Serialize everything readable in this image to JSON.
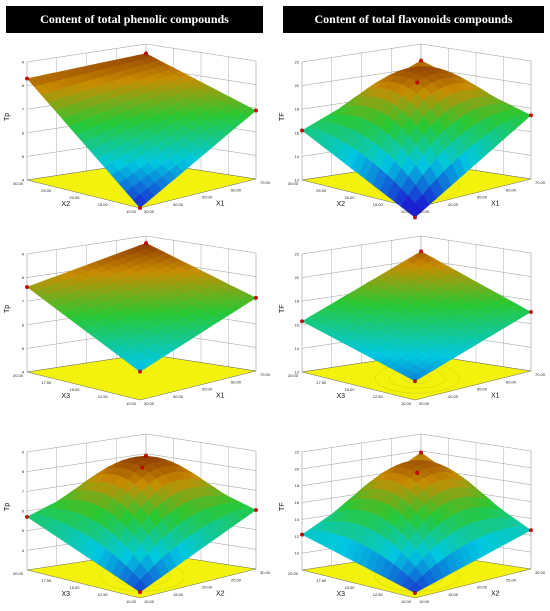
{
  "headers": {
    "left": "Content of total phenolic compounds",
    "right": "Content of total flavonoids compounds"
  },
  "colors": {
    "floor": "#f2f20c",
    "surface_high": "#7a1e00",
    "surface_mid": "#1fbf3a",
    "surface_low": "#1a1fd0",
    "marker": "#e00000"
  },
  "chart_data": [
    {
      "type": "surface3d",
      "column": "left",
      "row": 1,
      "xlabel": "X1",
      "ylabel": "X2",
      "zlabel": "Tp",
      "x_ticks": [
        "30.00",
        "40.00",
        "50.00",
        "60.00",
        "70.00"
      ],
      "y_ticks": [
        "10.00",
        "15.00",
        "20.00",
        "25.00",
        "30.00"
      ],
      "z_ticks": [
        "4",
        "5",
        "6",
        "7",
        "8",
        "9"
      ],
      "zlim": [
        4,
        9
      ],
      "corners": {
        "left": 8.3,
        "back": 8.6,
        "right": 6.9,
        "front": 4.0
      },
      "peak": null,
      "contours": false
    },
    {
      "type": "surface3d",
      "column": "right",
      "row": 1,
      "xlabel": "X1",
      "ylabel": "X2",
      "zlabel": "TF",
      "x_ticks": [
        "30.00",
        "40.00",
        "50.00",
        "60.00",
        "70.00"
      ],
      "y_ticks": [
        "10.00",
        "15.00",
        "20.00",
        "25.00",
        "30.00"
      ],
      "z_ticks": [
        "12",
        "14",
        "16",
        "18",
        "20",
        "22"
      ],
      "zlim": [
        12,
        22
      ],
      "corners": {
        "left": 16.2,
        "back": 20.6,
        "right": 17.4,
        "front": 11.2
      },
      "peak": 20.9,
      "contours": true
    },
    {
      "type": "surface3d",
      "column": "left",
      "row": 2,
      "xlabel": "X1",
      "ylabel": "X3",
      "zlabel": "Tp",
      "x_ticks": [
        "30.00",
        "40.00",
        "50.00",
        "60.00",
        "70.00"
      ],
      "y_ticks": [
        "10.00",
        "12.50",
        "15.00",
        "17.50",
        "20.00"
      ],
      "z_ticks": [
        "4",
        "5",
        "6",
        "7",
        "8",
        "9"
      ],
      "zlim": [
        4,
        9
      ],
      "corners": {
        "left": 7.6,
        "back": 8.7,
        "right": 7.1,
        "front": 5.2
      },
      "peak": null,
      "contours": false
    },
    {
      "type": "surface3d",
      "column": "right",
      "row": 2,
      "xlabel": "X1",
      "ylabel": "X3",
      "zlabel": "TF",
      "x_ticks": [
        "30.00",
        "40.00",
        "50.00",
        "60.00",
        "70.00"
      ],
      "y_ticks": [
        "10.00",
        "12.50",
        "15.00",
        "17.50",
        "20.00"
      ],
      "z_ticks": [
        "12",
        "14",
        "16",
        "18",
        "20",
        "22"
      ],
      "zlim": [
        12,
        22
      ],
      "corners": {
        "left": 16.3,
        "back": 20.7,
        "right": 17.0,
        "front": 13.6
      },
      "peak": null,
      "contours": true
    },
    {
      "type": "surface3d",
      "column": "left",
      "row": 3,
      "xlabel": "X2",
      "ylabel": "X3",
      "zlabel": "Tp",
      "x_ticks": [
        "10.00",
        "15.00",
        "20.00",
        "25.00",
        "30.00"
      ],
      "y_ticks": [
        "10.00",
        "12.50",
        "15.00",
        "17.50",
        "20.00"
      ],
      "z_ticks": [
        "4",
        "5",
        "6",
        "7",
        "8",
        "9"
      ],
      "zlim": [
        3,
        9
      ],
      "corners": {
        "left": 5.7,
        "back": 7.9,
        "right": 6.0,
        "front": 3.3
      },
      "peak": 8.6,
      "contours": true
    },
    {
      "type": "surface3d",
      "column": "right",
      "row": 3,
      "xlabel": "X2",
      "ylabel": "X3",
      "zlabel": "TF",
      "x_ticks": [
        "10.00",
        "15.00",
        "20.00",
        "25.00",
        "30.00"
      ],
      "y_ticks": [
        "10.00",
        "12.50",
        "15.00",
        "17.50",
        "20.00"
      ],
      "z_ticks": [
        "10",
        "12",
        "14",
        "16",
        "18",
        "20",
        "22"
      ],
      "zlim": [
        8,
        22
      ],
      "corners": {
        "left": 12.2,
        "back": 19.8,
        "right": 12.6,
        "front": 8.6
      },
      "peak": 20.5,
      "contours": true
    }
  ]
}
